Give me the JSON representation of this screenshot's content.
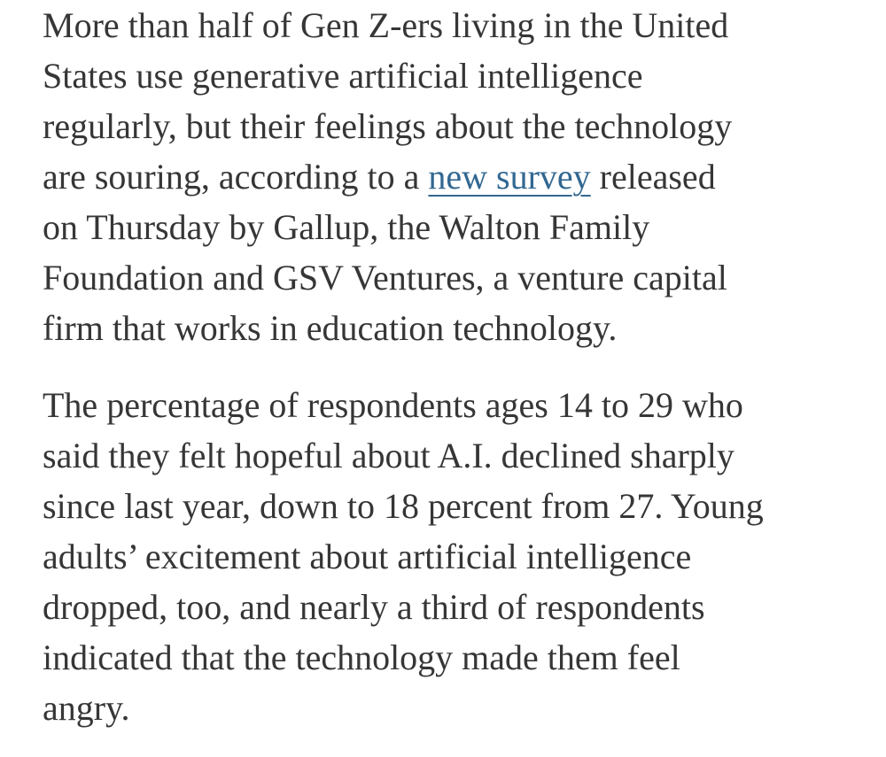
{
  "colors": {
    "background": "#ffffff",
    "text": "#363636",
    "link": "#326891"
  },
  "article": {
    "link_text": "new survey",
    "paragraphs": [
      {
        "lines": [
          [
            {
              "text": "More than half of Gen Z-ers living in the United"
            }
          ],
          [
            {
              "text": "States use generative artificial intelligence"
            }
          ],
          [
            {
              "text": "regularly, but their feelings about the technology"
            }
          ],
          [
            {
              "text": "are souring, according to a "
            },
            {
              "text": "new survey",
              "link": true
            },
            {
              "text": " released"
            }
          ],
          [
            {
              "text": "on Thursday by Gallup, the Walton Family"
            }
          ],
          [
            {
              "text": "Foundation and GSV Ventures, a venture capital"
            }
          ],
          [
            {
              "text": "firm that works in education technology."
            }
          ]
        ]
      },
      {
        "lines": [
          [
            {
              "text": "The percentage of respondents ages 14 to 29 who"
            }
          ],
          [
            {
              "text": "said they felt hopeful about A.I. declined sharply"
            }
          ],
          [
            {
              "text": "since last year, down to 18 percent from 27. Young"
            }
          ],
          [
            {
              "text": "adults’ excitement about artificial intelligence"
            }
          ],
          [
            {
              "text": "dropped, too, and nearly a third of respondents"
            }
          ],
          [
            {
              "text": "indicated that the technology made them feel"
            }
          ],
          [
            {
              "text": "angry."
            }
          ]
        ]
      }
    ]
  }
}
